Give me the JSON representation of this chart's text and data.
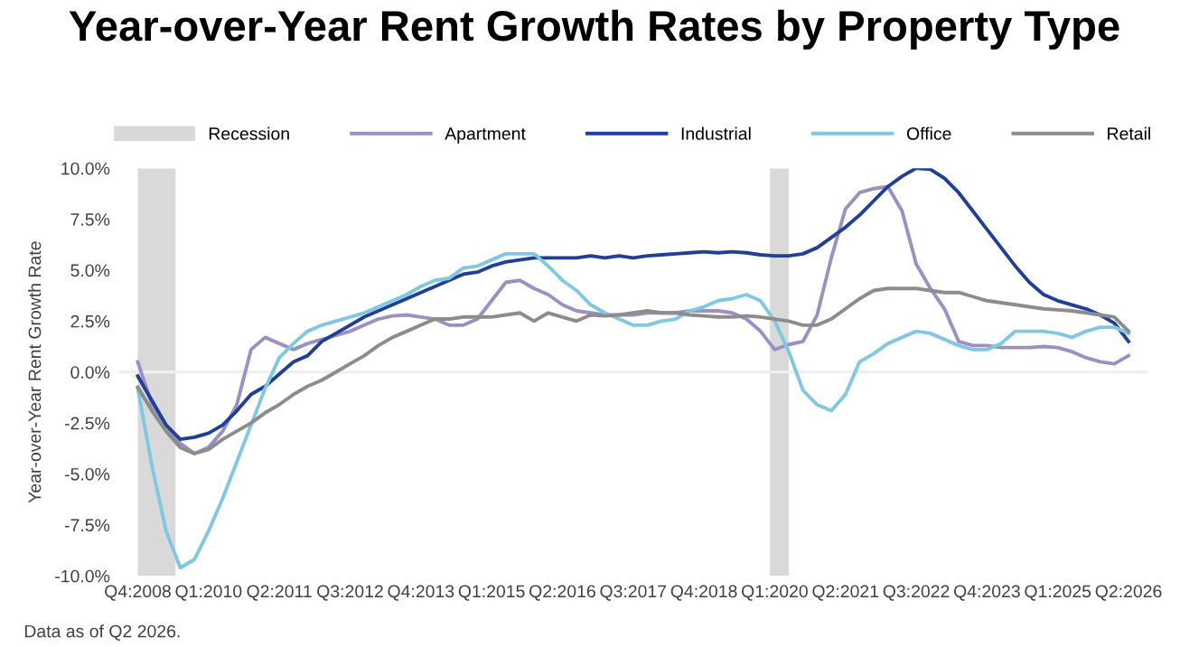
{
  "chart_data": {
    "type": "line",
    "title": "Year-over-Year Rent Growth Rates by Property Type",
    "ylabel": "Year-over-Year Rent Growth Rate",
    "annotations": [
      "Data as of Q2 2026."
    ],
    "x": [
      "2008-10",
      "2009-01",
      "2009-04",
      "2009-07",
      "2009-10",
      "2010-01",
      "2010-04",
      "2010-07",
      "2010-10",
      "2011-01",
      "2011-04",
      "2011-07",
      "2011-10",
      "2012-01",
      "2012-04",
      "2012-07",
      "2012-10",
      "2013-01",
      "2013-04",
      "2013-07",
      "2013-10",
      "2014-01",
      "2014-04",
      "2014-07",
      "2014-10",
      "2015-01",
      "2015-04",
      "2015-07",
      "2015-10",
      "2016-01",
      "2016-04",
      "2016-07",
      "2016-10",
      "2017-01",
      "2017-04",
      "2017-07",
      "2017-10",
      "2018-01",
      "2018-04",
      "2018-07",
      "2018-10",
      "2019-01",
      "2019-04",
      "2019-07",
      "2019-10",
      "2020-01",
      "2020-04",
      "2020-07",
      "2020-10",
      "2021-01",
      "2021-04",
      "2021-07",
      "2021-10",
      "2022-01",
      "2022-04",
      "2022-07",
      "2022-10",
      "2023-01",
      "2023-04",
      "2023-07",
      "2023-10",
      "2024-01",
      "2024-04",
      "2024-07",
      "2024-10",
      "2025-01",
      "2025-04",
      "2025-07",
      "2025-10",
      "2026-01",
      "2026-04"
    ],
    "series": [
      {
        "name": "Apartment",
        "color": "#9b8fc4",
        "values": [
          0.5,
          -1.6,
          -2.6,
          -3.5,
          -4.0,
          -3.7,
          -2.9,
          -1.6,
          1.1,
          1.7,
          1.4,
          1.1,
          1.4,
          1.6,
          1.8,
          2.0,
          2.3,
          2.6,
          2.75,
          2.8,
          2.7,
          2.6,
          2.3,
          2.3,
          2.6,
          3.5,
          4.4,
          4.5,
          4.1,
          3.8,
          3.3,
          3.0,
          2.9,
          2.8,
          2.8,
          2.8,
          2.9,
          2.9,
          2.9,
          3.0,
          3.0,
          3.0,
          2.9,
          2.6,
          2.0,
          1.1,
          1.35,
          1.5,
          2.8,
          5.6,
          8.0,
          8.8,
          9.0,
          9.1,
          7.9,
          5.3,
          4.1,
          3.1,
          1.5,
          1.3,
          1.3,
          1.2,
          1.2,
          1.2,
          1.25,
          1.2,
          1.0,
          0.7,
          0.5,
          0.4,
          0.8
        ]
      },
      {
        "name": "Industrial",
        "color": "#1f3f99",
        "values": [
          -0.2,
          -1.4,
          -2.6,
          -3.3,
          -3.2,
          -3.0,
          -2.6,
          -1.9,
          -1.1,
          -0.7,
          -0.1,
          0.5,
          0.8,
          1.5,
          1.9,
          2.3,
          2.7,
          3.0,
          3.3,
          3.6,
          3.9,
          4.2,
          4.5,
          4.8,
          4.9,
          5.2,
          5.4,
          5.5,
          5.6,
          5.6,
          5.6,
          5.6,
          5.7,
          5.6,
          5.7,
          5.6,
          5.7,
          5.75,
          5.8,
          5.85,
          5.9,
          5.85,
          5.9,
          5.85,
          5.75,
          5.7,
          5.7,
          5.8,
          6.1,
          6.6,
          7.1,
          7.7,
          8.4,
          9.1,
          9.6,
          10.0,
          9.95,
          9.5,
          8.8,
          7.9,
          7.0,
          6.1,
          5.2,
          4.4,
          3.8,
          3.5,
          3.3,
          3.1,
          2.8,
          2.4,
          1.5
        ]
      },
      {
        "name": "Office",
        "color": "#7ec8e3",
        "values": [
          -0.8,
          -4.6,
          -7.8,
          -9.6,
          -9.2,
          -7.8,
          -6.2,
          -4.4,
          -2.6,
          -0.8,
          0.7,
          1.4,
          2.0,
          2.3,
          2.5,
          2.7,
          2.9,
          3.2,
          3.5,
          3.8,
          4.2,
          4.5,
          4.6,
          5.1,
          5.2,
          5.5,
          5.8,
          5.8,
          5.8,
          5.2,
          4.5,
          4.0,
          3.3,
          2.9,
          2.6,
          2.3,
          2.3,
          2.5,
          2.6,
          3.0,
          3.2,
          3.5,
          3.6,
          3.8,
          3.5,
          2.5,
          1.0,
          -0.9,
          -1.6,
          -1.9,
          -1.1,
          0.5,
          0.9,
          1.4,
          1.7,
          2.0,
          1.9,
          1.6,
          1.3,
          1.1,
          1.1,
          1.4,
          2.0,
          2.0,
          2.0,
          1.9,
          1.7,
          2.0,
          2.2,
          2.2,
          1.9
        ]
      },
      {
        "name": "Retail",
        "color": "#8c8c8c",
        "values": [
          -0.75,
          -1.9,
          -2.9,
          -3.7,
          -4.0,
          -3.8,
          -3.3,
          -2.9,
          -2.5,
          -2.0,
          -1.6,
          -1.1,
          -0.7,
          -0.4,
          0.0,
          0.4,
          0.8,
          1.3,
          1.7,
          2.0,
          2.3,
          2.6,
          2.6,
          2.7,
          2.7,
          2.7,
          2.8,
          2.9,
          2.5,
          2.9,
          2.7,
          2.5,
          2.8,
          2.75,
          2.8,
          2.9,
          3.0,
          2.9,
          2.9,
          2.8,
          2.75,
          2.7,
          2.7,
          2.75,
          2.7,
          2.6,
          2.5,
          2.3,
          2.3,
          2.6,
          3.1,
          3.6,
          4.0,
          4.1,
          4.1,
          4.1,
          4.0,
          3.9,
          3.9,
          3.7,
          3.5,
          3.4,
          3.3,
          3.2,
          3.1,
          3.05,
          3.0,
          2.9,
          2.8,
          2.7,
          2.0
        ]
      }
    ],
    "bands": [
      {
        "axis": "x",
        "from": "2008-10",
        "to": "2009-06",
        "label": "Recession",
        "color": "#d9d9d9"
      },
      {
        "axis": "x",
        "from": "2019-12",
        "to": "2020-04",
        "color": "#d9d9d9"
      }
    ],
    "ref_lines": [
      {
        "axis": "y",
        "value": 0,
        "color": "#efefef"
      }
    ],
    "xlim": [
      "2008-06",
      "2026-08"
    ],
    "xticks": [
      {
        "value": "2008-10",
        "label": "Q4:2008"
      },
      {
        "value": "2010-01",
        "label": "Q1:2010"
      },
      {
        "value": "2011-04",
        "label": "Q2:2011"
      },
      {
        "value": "2012-07",
        "label": "Q3:2012"
      },
      {
        "value": "2013-10",
        "label": "Q4:2013"
      },
      {
        "value": "2015-01",
        "label": "Q1:2015"
      },
      {
        "value": "2016-04",
        "label": "Q2:2016"
      },
      {
        "value": "2017-07",
        "label": "Q3:2017"
      },
      {
        "value": "2018-10",
        "label": "Q4:2018"
      },
      {
        "value": "2020-01",
        "label": "Q1:2020"
      },
      {
        "value": "2021-04",
        "label": "Q2:2021"
      },
      {
        "value": "2022-07",
        "label": "Q3:2022"
      },
      {
        "value": "2023-10",
        "label": "Q4:2023"
      },
      {
        "value": "2025-01",
        "label": "Q1:2025"
      },
      {
        "value": "2026-04",
        "label": "Q2:2026"
      }
    ],
    "ylim": [
      -10,
      10
    ],
    "yticks": [
      {
        "value": -10,
        "label": "-10.0%"
      },
      {
        "value": -7.5,
        "label": "-7.5%"
      },
      {
        "value": -5,
        "label": "-5.0%"
      },
      {
        "value": -2.5,
        "label": "-2.5%"
      },
      {
        "value": 0,
        "label": "0.0%"
      },
      {
        "value": 2.5,
        "label": "2.5%"
      },
      {
        "value": 5,
        "label": "5.0%"
      },
      {
        "value": 7.5,
        "label": "7.5%"
      },
      {
        "value": 10,
        "label": "10.0%"
      }
    ],
    "grid": false,
    "legend": "top",
    "marker": "none",
    "line_style": "solid"
  }
}
